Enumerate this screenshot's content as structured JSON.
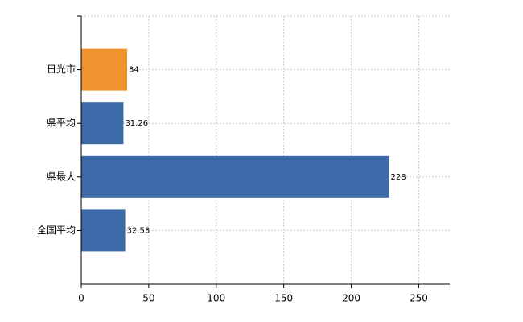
{
  "chart_data": {
    "type": "hbar",
    "categories": [
      "日光市",
      "県平均",
      "県最大",
      "全国平均"
    ],
    "values": [
      34,
      31.26,
      228,
      32.53
    ],
    "colors": [
      "#f0922e",
      "#3c6aa8",
      "#3c6aa8",
      "#3c6aa8"
    ],
    "xlim": [
      0,
      273
    ],
    "xticks": [
      0,
      50,
      100,
      150,
      200,
      250
    ],
    "grid": true
  }
}
